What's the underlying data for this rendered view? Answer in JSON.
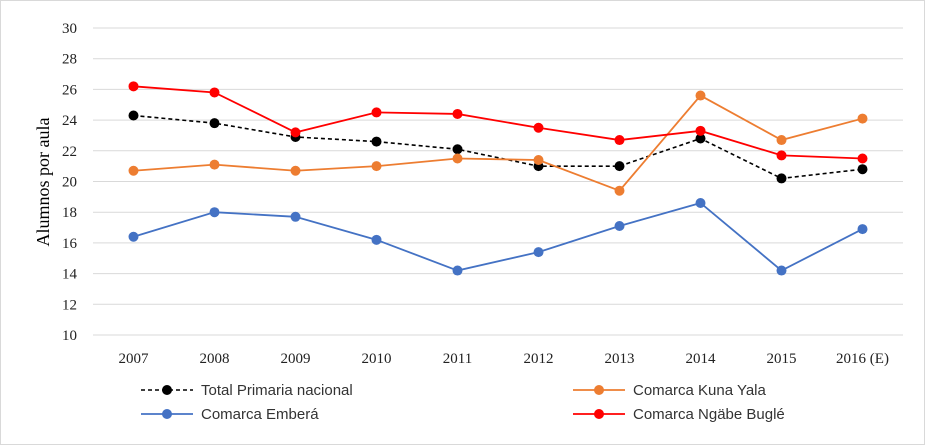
{
  "chart_data": {
    "type": "line",
    "ylabel": "Alumnos por aula",
    "xlabel": "",
    "ylim": [
      10,
      30
    ],
    "yticks": [
      "10",
      "12",
      "14",
      "16",
      "18",
      "20",
      "22",
      "24",
      "26",
      "28",
      "30"
    ],
    "categories": [
      "2007",
      "2008",
      "2009",
      "2010",
      "2011",
      "2012",
      "2013",
      "2014",
      "2015",
      "2016 (E)"
    ],
    "grid": "horizontal",
    "legend_position": "bottom",
    "series": [
      {
        "name": "Total Primaria nacional",
        "color": "#000000",
        "dashed": true,
        "values": [
          24.3,
          23.8,
          22.9,
          22.6,
          22.1,
          21.0,
          21.0,
          22.8,
          20.2,
          20.8
        ]
      },
      {
        "name": "Comarca Kuna Yala",
        "color": "#ED7D31",
        "dashed": false,
        "values": [
          20.7,
          21.1,
          20.7,
          21.0,
          21.5,
          21.4,
          19.4,
          25.6,
          22.7,
          24.1
        ]
      },
      {
        "name": "Comarca Emberá",
        "color": "#4472C4",
        "dashed": false,
        "values": [
          16.4,
          18.0,
          17.7,
          16.2,
          14.2,
          15.4,
          17.1,
          18.6,
          14.2,
          16.9
        ]
      },
      {
        "name": "Comarca Ngäbe Buglé",
        "color": "#FF0000",
        "dashed": false,
        "values": [
          26.2,
          25.8,
          23.2,
          24.5,
          24.4,
          23.5,
          22.7,
          23.3,
          21.7,
          21.5
        ]
      }
    ]
  }
}
